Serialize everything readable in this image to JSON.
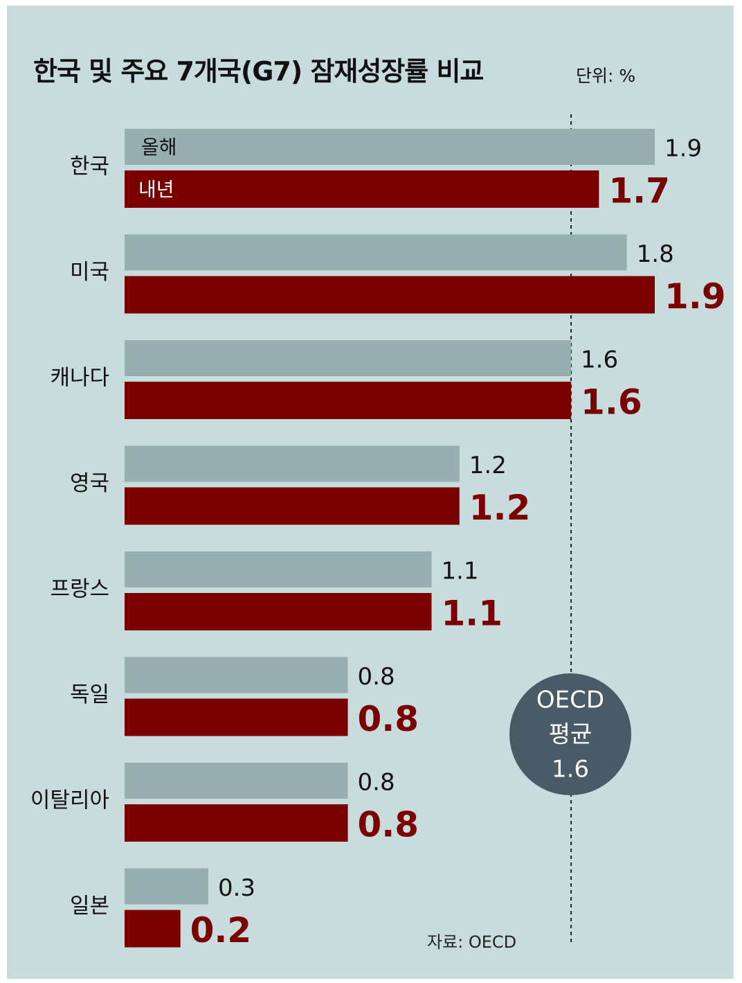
{
  "title": "한국 및 주요 7개국(G7) 잠재성장률 비교",
  "unit_label": "단위: %",
  "source": "자료: OECD",
  "colors": {
    "background": "#c8dcdd",
    "this_year": "#97afb0",
    "next_year": "#7a0000",
    "oecd_circle": "#4a5b68"
  },
  "chart_data": {
    "type": "bar",
    "orientation": "horizontal",
    "categories": [
      "한국",
      "미국",
      "캐나다",
      "영국",
      "프랑스",
      "독일",
      "이탈리아",
      "일본"
    ],
    "series": [
      {
        "name": "올해",
        "values": [
          1.9,
          1.8,
          1.6,
          1.2,
          1.1,
          0.8,
          0.8,
          0.3
        ]
      },
      {
        "name": "내년",
        "values": [
          1.7,
          1.9,
          1.6,
          1.2,
          1.1,
          0.8,
          0.8,
          0.2
        ]
      }
    ],
    "value_labels": [
      [
        "1.9",
        "1.8",
        "1.6",
        "1.2",
        "1.1",
        "0.8",
        "0.8",
        "0.3"
      ],
      [
        "1.7",
        "1.9",
        "1.6",
        "1.2",
        "1.1",
        "0.8",
        "0.8",
        "0.2"
      ]
    ],
    "xlim": [
      0,
      1.9
    ],
    "grid": false,
    "legend": "inside-first-bars",
    "reference_line": {
      "value": 1.6,
      "label_lines": [
        "OECD",
        "평균",
        "1.6"
      ]
    }
  }
}
